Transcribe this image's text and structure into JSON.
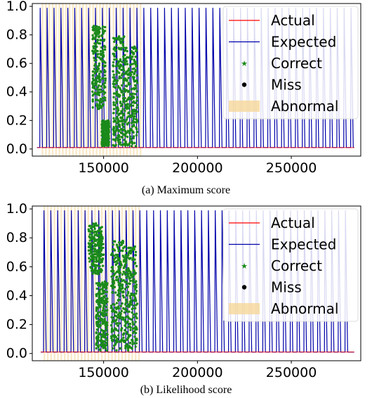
{
  "chart_data": [
    {
      "type": "line",
      "caption": "(a) Maximum score",
      "xlim": [
        112000,
        287000
      ],
      "ylim": [
        -0.05,
        1.02
      ],
      "x_ticks": [
        150000,
        200000,
        250000
      ],
      "x_tick_labels": [
        "150000",
        "200000",
        "250000"
      ],
      "y_ticks": [
        0.0,
        0.2,
        0.4,
        0.6,
        0.8,
        1.0
      ],
      "y_tick_labels": [
        "0.0",
        "0.2",
        "0.4",
        "0.6",
        "0.8",
        "1.0"
      ],
      "legend_position": "top-right",
      "series": [
        {
          "name": "Actual",
          "color": "#ff0000",
          "kind": "line",
          "baseline": 0.01
        },
        {
          "name": "Expected",
          "color": "#0000aa",
          "kind": "line",
          "pulse_start": 116000,
          "pulse_end": 282000,
          "pulse_period": 3680,
          "pulse_width": 1400,
          "peak": 0.99,
          "base": 0.01
        },
        {
          "name": "Correct",
          "color": "#1a8a1a",
          "kind": "marker",
          "clusters": [
            {
              "x_start": 144000,
              "x_end": 151000,
              "y_low": 0.28,
              "y_high": 0.87
            },
            {
              "x_start": 149000,
              "x_end": 153000,
              "y_low": 0.02,
              "y_high": 0.2
            },
            {
              "x_start": 155000,
              "x_end": 161000,
              "y_low": 0.02,
              "y_high": 0.8
            },
            {
              "x_start": 161000,
              "x_end": 168000,
              "y_low": 0.02,
              "y_high": 0.72
            }
          ]
        },
        {
          "name": "Miss",
          "color": "#000000",
          "kind": "marker",
          "clusters": []
        },
        {
          "name": "Abnormal",
          "color": "#f6d79a",
          "kind": "band",
          "x_start": 117000,
          "x_end": 170000
        }
      ]
    },
    {
      "type": "line",
      "caption": "(b) Likelihood score",
      "xlim": [
        112000,
        287000
      ],
      "ylim": [
        -0.05,
        1.02
      ],
      "x_ticks": [
        150000,
        200000,
        250000
      ],
      "x_tick_labels": [
        "150000",
        "200000",
        "250000"
      ],
      "y_ticks": [
        0.0,
        0.2,
        0.4,
        0.6,
        0.8,
        1.0
      ],
      "y_tick_labels": [
        "0.0",
        "0.2",
        "0.4",
        "0.6",
        "0.8",
        "1.0"
      ],
      "legend_position": "top-right",
      "series": [
        {
          "name": "Actual",
          "color": "#ff0000",
          "kind": "line",
          "baseline": 0.01
        },
        {
          "name": "Expected",
          "color": "#0000aa",
          "kind": "line",
          "pulse_start": 118000,
          "pulse_end": 282000,
          "pulse_period": 3650,
          "pulse_width": 1400,
          "peak": 0.99,
          "base": 0.01
        },
        {
          "name": "Correct",
          "color": "#1a8a1a",
          "kind": "marker",
          "clusters": [
            {
              "x_start": 142000,
              "x_end": 150000,
              "y_low": 0.55,
              "y_high": 0.9
            },
            {
              "x_start": 146000,
              "x_end": 152000,
              "y_low": 0.02,
              "y_high": 0.5
            },
            {
              "x_start": 154000,
              "x_end": 161000,
              "y_low": 0.02,
              "y_high": 0.78
            },
            {
              "x_start": 161000,
              "x_end": 168000,
              "y_low": 0.02,
              "y_high": 0.74
            }
          ]
        },
        {
          "name": "Miss",
          "color": "#000000",
          "kind": "marker",
          "clusters": []
        },
        {
          "name": "Abnormal",
          "color": "#f6d79a",
          "kind": "band",
          "x_start": 118000,
          "x_end": 170000
        }
      ]
    }
  ]
}
